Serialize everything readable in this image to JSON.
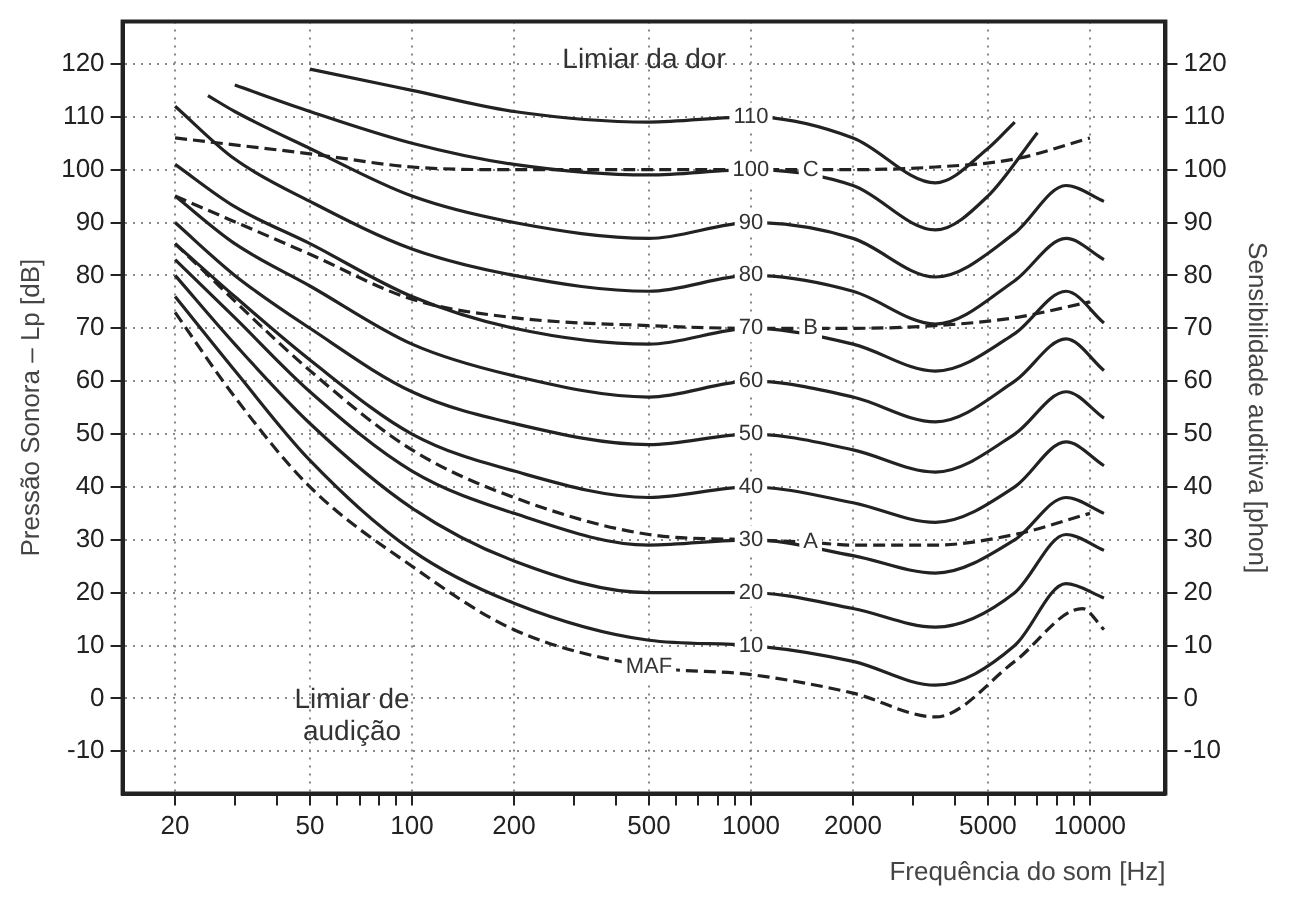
{
  "chart_data": {
    "type": "line",
    "xlabel": "Frequência do som [Hz]",
    "ylabel": "Pressão Sonora – Lp [dB]",
    "y2label": "Sensibilidade auditiva [phon]",
    "log": "x",
    "xlim": [
      14,
      16700
    ],
    "ylim": [
      -18,
      128
    ],
    "y2lim": [
      -18,
      128
    ],
    "xticks": [
      20,
      {
        "value": 30,
        "label": null
      },
      {
        "value": 40,
        "label": null
      },
      50,
      {
        "value": 60,
        "label": null
      },
      {
        "value": 70,
        "label": null
      },
      {
        "value": 80,
        "label": null
      },
      {
        "value": 90,
        "label": null
      },
      100,
      200,
      {
        "value": 300,
        "label": null
      },
      {
        "value": 400,
        "label": null
      },
      500,
      {
        "value": 600,
        "label": null
      },
      {
        "value": 700,
        "label": null
      },
      {
        "value": 800,
        "label": null
      },
      {
        "value": 900,
        "label": null
      },
      1000,
      2000,
      {
        "value": 3000,
        "label": null
      },
      {
        "value": 4000,
        "label": null
      },
      5000,
      {
        "value": 6000,
        "label": null
      },
      {
        "value": 7000,
        "label": null
      },
      {
        "value": 8000,
        "label": null
      },
      {
        "value": 9000,
        "label": null
      },
      10000
    ],
    "yticks": [
      -10,
      0,
      10,
      20,
      30,
      40,
      50,
      60,
      70,
      80,
      90,
      100,
      110,
      120
    ],
    "y2ticks": [
      -10,
      0,
      10,
      20,
      30,
      40,
      50,
      60,
      70,
      80,
      90,
      100,
      110,
      120
    ],
    "grid": true,
    "legend": false,
    "marker": "none",
    "series": [
      {
        "color": "#222222",
        "line_style": "solid",
        "x": [
          20,
          30,
          50,
          100,
          200,
          500,
          1000,
          2000,
          3500,
          6000,
          8500,
          11000
        ],
        "values": [
          76,
          62,
          45,
          28,
          18,
          11,
          10,
          7,
          2.5,
          10,
          21.7,
          19
        ]
      },
      {
        "color": "#222222",
        "line_style": "solid",
        "x": [
          20,
          30,
          50,
          100,
          200,
          500,
          1000,
          2000,
          3500,
          6000,
          8500,
          11000
        ],
        "values": [
          80,
          67,
          52,
          36,
          26,
          20,
          20,
          17,
          13.5,
          20,
          31,
          28
        ]
      },
      {
        "color": "#222222",
        "line_style": "solid",
        "x": [
          20,
          30,
          50,
          100,
          200,
          500,
          1000,
          2000,
          3500,
          6000,
          8500,
          11000
        ],
        "values": [
          83,
          72,
          58,
          43,
          35,
          29,
          30,
          27,
          23.7,
          30,
          38,
          35
        ]
      },
      {
        "color": "#222222",
        "line_style": "solid",
        "x": [
          20,
          30,
          50,
          100,
          200,
          500,
          1000,
          2000,
          3500,
          6000,
          8500,
          11000
        ],
        "values": [
          86,
          76,
          64,
          50,
          43,
          38,
          40,
          37,
          33.3,
          40,
          48.5,
          44
        ]
      },
      {
        "color": "#222222",
        "line_style": "solid",
        "x": [
          20,
          30,
          50,
          100,
          200,
          500,
          1000,
          2000,
          3500,
          6000,
          8500,
          11000
        ],
        "values": [
          90,
          80,
          70,
          58,
          52,
          48,
          50,
          47,
          42.8,
          50,
          58,
          53
        ]
      },
      {
        "color": "#222222",
        "line_style": "solid",
        "x": [
          20,
          30,
          50,
          100,
          200,
          500,
          1000,
          2000,
          3500,
          6000,
          8500,
          11000
        ],
        "values": [
          95,
          86,
          78,
          67,
          61,
          57,
          60,
          57,
          52.3,
          60,
          68,
          62
        ]
      },
      {
        "color": "#222222",
        "line_style": "solid",
        "x": [
          20,
          30,
          50,
          100,
          200,
          500,
          1000,
          2000,
          3500,
          6000,
          8500,
          11000
        ],
        "values": [
          101,
          93,
          86,
          76,
          70,
          67,
          70,
          67,
          61.9,
          69,
          77,
          71
        ]
      },
      {
        "color": "#222222",
        "line_style": "solid",
        "x": [
          20,
          30,
          50,
          100,
          200,
          500,
          1000,
          2000,
          3500,
          6000,
          8500,
          11000
        ],
        "values": [
          112,
          102,
          94,
          85,
          80,
          77,
          80,
          77,
          70.8,
          79,
          87,
          83
        ]
      },
      {
        "color": "#222222",
        "line_style": "solid",
        "x": [
          25,
          30,
          50,
          100,
          200,
          500,
          1000,
          2000,
          3500,
          6000,
          8500,
          11000
        ],
        "values": [
          114,
          111,
          104,
          95,
          90,
          87,
          90,
          87,
          79.7,
          88,
          97,
          94
        ]
      },
      {
        "color": "#222222",
        "line_style": "solid",
        "x": [
          30,
          50,
          100,
          200,
          500,
          1000,
          2000,
          3500,
          5000,
          7000
        ],
        "values": [
          116,
          111,
          105,
          101,
          99,
          100,
          97,
          88.6,
          95,
          107
        ]
      },
      {
        "color": "#222222",
        "line_style": "solid",
        "x": [
          50,
          100,
          200,
          500,
          1000,
          2000,
          3500,
          5000,
          6000
        ],
        "values": [
          119,
          115,
          111,
          109,
          110,
          106,
          97.5,
          104,
          109
        ]
      },
      {
        "color": "#222222",
        "line_style": "dashed",
        "x": [
          20,
          30,
          50,
          100,
          200,
          500,
          1000,
          2000,
          3500,
          6000,
          9500,
          11000
        ],
        "values": [
          73,
          57,
          40,
          25,
          13,
          6,
          4.5,
          1,
          -3.5,
          7,
          17,
          13
        ]
      },
      {
        "color": "#222222",
        "line_style": "dashed",
        "x": [
          20,
          50,
          100,
          200,
          500,
          1000,
          1500,
          2000,
          3500,
          6000,
          10000
        ],
        "values": [
          86,
          62,
          47,
          38,
          31,
          30,
          29.5,
          29,
          29,
          31,
          35
        ]
      },
      {
        "color": "#222222",
        "line_style": "dashed",
        "x": [
          20,
          50,
          100,
          200,
          500,
          1000,
          1500,
          2000,
          3500,
          6000,
          10000
        ],
        "values": [
          95,
          84,
          75.5,
          72,
          70.5,
          70,
          70,
          70,
          70.5,
          72,
          75
        ]
      },
      {
        "color": "#222222",
        "line_style": "dashed",
        "x": [
          20,
          50,
          100,
          200,
          500,
          1000,
          1500,
          2000,
          3500,
          6000,
          10000
        ],
        "values": [
          106,
          103,
          100.5,
          100,
          100,
          100,
          100,
          100,
          100.5,
          102,
          106
        ]
      }
    ],
    "annotations": [
      {
        "text": "10",
        "x": 1000,
        "y": 10
      },
      {
        "text": "20",
        "x": 1000,
        "y": 20
      },
      {
        "text": "30",
        "x": 1000,
        "y": 30
      },
      {
        "text": "40",
        "x": 1000,
        "y": 40
      },
      {
        "text": "50",
        "x": 1000,
        "y": 50
      },
      {
        "text": "60",
        "x": 1000,
        "y": 60
      },
      {
        "text": "70",
        "x": 1000,
        "y": 70
      },
      {
        "text": "80",
        "x": 1000,
        "y": 80
      },
      {
        "text": "90",
        "x": 1000,
        "y": 90
      },
      {
        "text": "100",
        "x": 1000,
        "y": 100
      },
      {
        "text": "110",
        "x": 1000,
        "y": 110
      },
      {
        "text": "MAF",
        "x": 500,
        "y": 6
      },
      {
        "text": "A",
        "x": 1500,
        "y": 29.5
      },
      {
        "text": "B",
        "x": 1500,
        "y": 70
      },
      {
        "text": "C",
        "x": 1500,
        "y": 100
      },
      "Limiar da dor",
      "Limiar de\naudição"
    ]
  }
}
